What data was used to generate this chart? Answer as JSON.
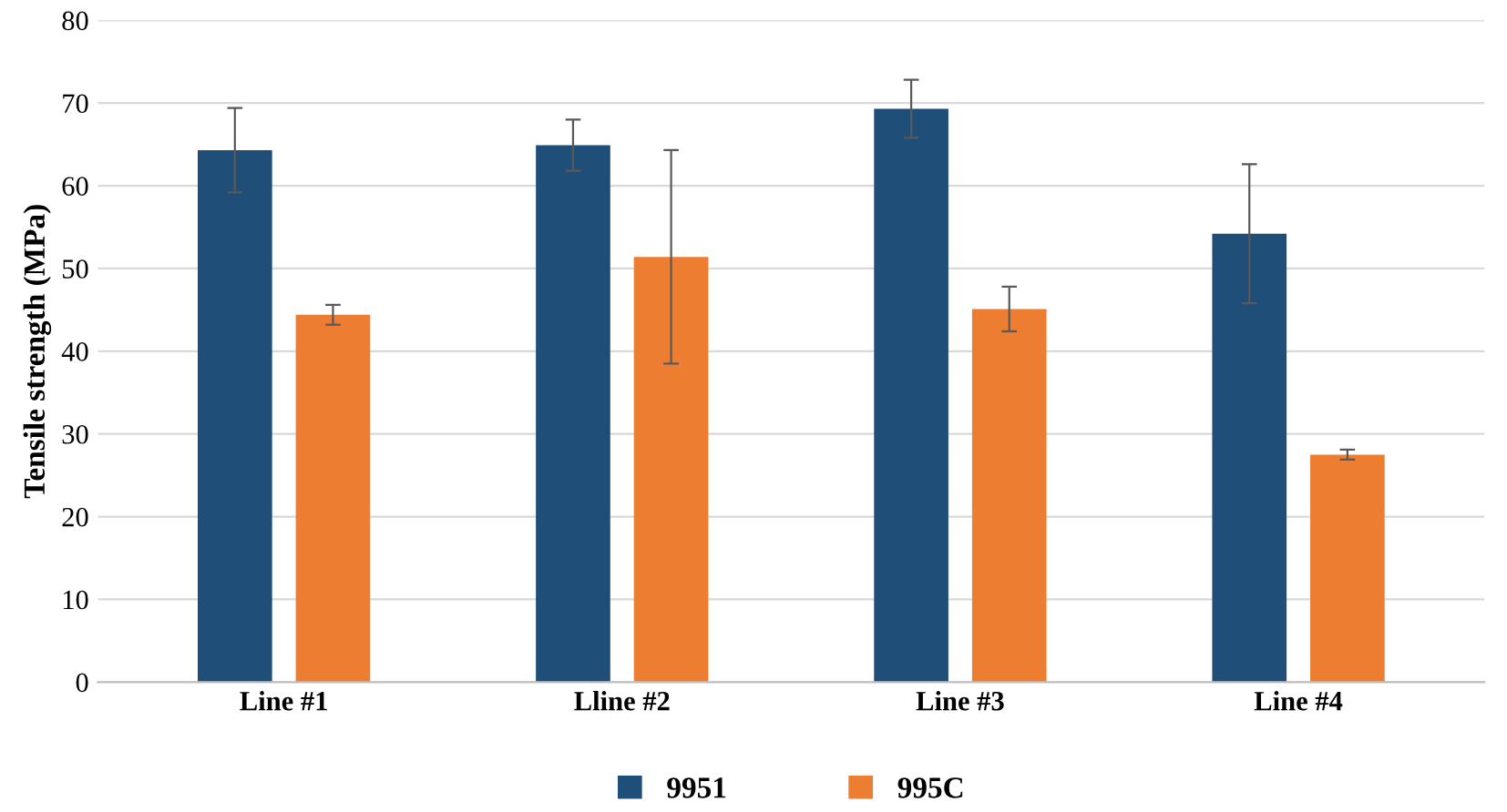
{
  "chart_data": {
    "type": "bar",
    "ylabel": "Tensile strength (MPa)",
    "categories": [
      "Line #1",
      "Lline #2",
      "Line #3",
      "Line #4"
    ],
    "series": [
      {
        "name": "9951",
        "color": "#1f4e79",
        "values": [
          64.3,
          64.9,
          69.3,
          54.2
        ],
        "errors": [
          5.1,
          3.1,
          3.5,
          8.4
        ]
      },
      {
        "name": "995C",
        "color": "#ed7d31",
        "values": [
          44.4,
          51.4,
          45.1,
          27.5
        ],
        "errors": [
          1.2,
          12.9,
          2.7,
          0.6
        ]
      }
    ],
    "ylim": [
      0,
      80
    ],
    "yticks": [
      0,
      10,
      20,
      30,
      40,
      50,
      60,
      70,
      80
    ],
    "grid": "y",
    "legend": "bottom"
  }
}
